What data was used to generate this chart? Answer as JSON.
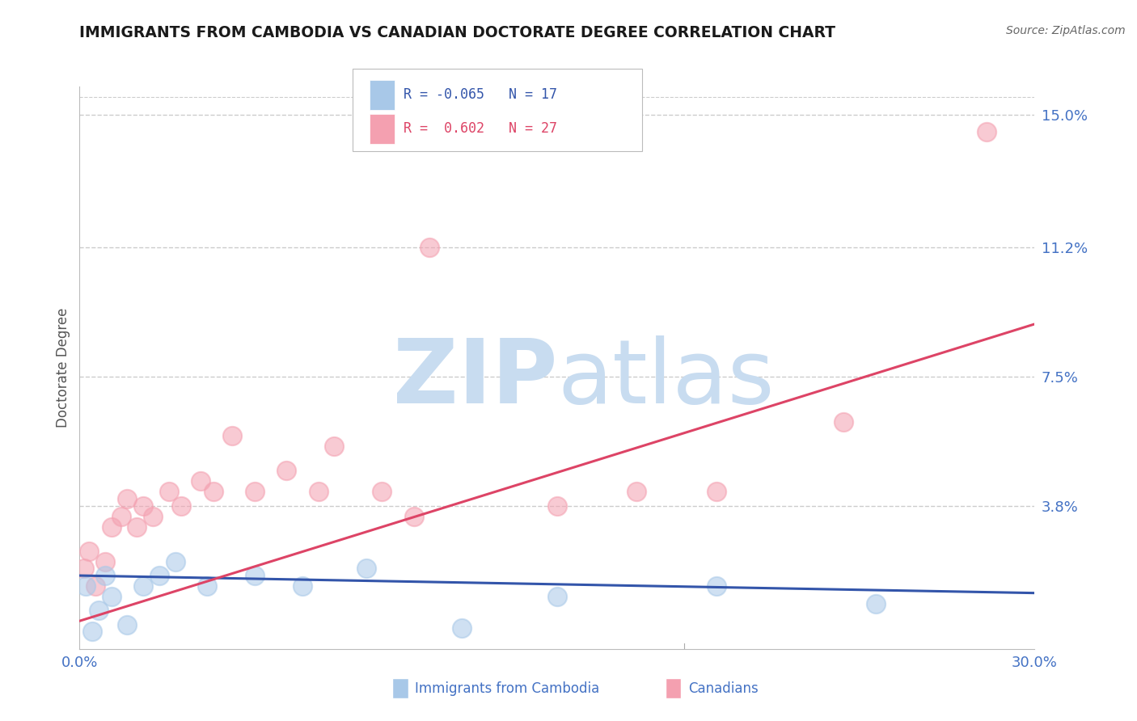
{
  "title": "IMMIGRANTS FROM CAMBODIA VS CANADIAN DOCTORATE DEGREE CORRELATION CHART",
  "source": "Source: ZipAtlas.com",
  "ylabel_label": "Doctorate Degree",
  "xmin": 0.0,
  "xmax": 30.0,
  "ymin": -0.3,
  "ymax": 15.8,
  "ytick_vals": [
    15.0,
    11.2,
    7.5,
    3.8
  ],
  "ytick_labels": [
    "15.0%",
    "11.2%",
    "7.5%",
    "3.8%"
  ],
  "legend_r1": "R = -0.065",
  "legend_n1": "N = 17",
  "legend_r2": "R =  0.602",
  "legend_n2": "N = 27",
  "blue_color": "#A8C8E8",
  "pink_color": "#F4A0B0",
  "blue_line_color": "#3355AA",
  "pink_line_color": "#DD4466",
  "watermark_zip_color": "#C8DCF0",
  "watermark_atlas_color": "#C8DCF0",
  "title_color": "#1a1a1a",
  "axis_label_color": "#4472C4",
  "grid_color": "#CCCCCC",
  "blue_points_x": [
    0.2,
    0.4,
    0.6,
    0.8,
    1.0,
    1.5,
    2.0,
    2.5,
    3.0,
    4.0,
    5.5,
    7.0,
    9.0,
    12.0,
    15.0,
    20.0,
    25.0
  ],
  "blue_points_y": [
    1.5,
    0.2,
    0.8,
    1.8,
    1.2,
    0.4,
    1.5,
    1.8,
    2.2,
    1.5,
    1.8,
    1.5,
    2.0,
    0.3,
    1.2,
    1.5,
    1.0
  ],
  "pink_points_x": [
    0.15,
    0.3,
    0.5,
    0.8,
    1.0,
    1.3,
    1.5,
    1.8,
    2.0,
    2.3,
    2.8,
    3.2,
    3.8,
    4.2,
    4.8,
    5.5,
    6.5,
    7.5,
    8.0,
    9.5,
    10.5,
    11.0,
    15.0,
    17.5,
    20.0,
    24.0,
    28.5
  ],
  "pink_points_y": [
    2.0,
    2.5,
    1.5,
    2.2,
    3.2,
    3.5,
    4.0,
    3.2,
    3.8,
    3.5,
    4.2,
    3.8,
    4.5,
    4.2,
    5.8,
    4.2,
    4.8,
    4.2,
    5.5,
    4.2,
    3.5,
    11.2,
    3.8,
    4.2,
    4.2,
    6.2,
    14.5
  ],
  "blue_line_x": [
    0.0,
    30.0
  ],
  "blue_line_y": [
    1.8,
    1.3
  ],
  "pink_line_x": [
    0.0,
    30.0
  ],
  "pink_line_y": [
    0.5,
    9.0
  ],
  "legend_label1": "Immigrants from Cambodia",
  "legend_label2": "Canadians"
}
